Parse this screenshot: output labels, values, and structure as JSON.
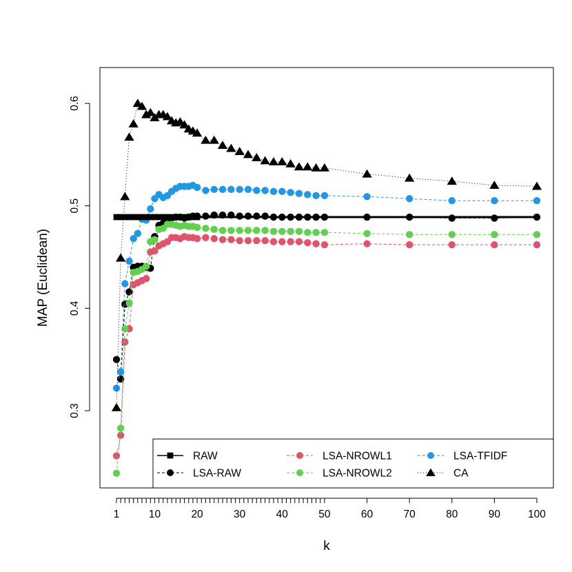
{
  "chart_data": {
    "type": "line",
    "xlabel": "k",
    "ylabel": "MAP (Euclidean)",
    "xlim": [
      1,
      100
    ],
    "ylim": [
      0.24,
      0.62
    ],
    "x_tick_labels": [
      {
        "value": 1,
        "label": "1"
      },
      {
        "value": 10,
        "label": "10"
      },
      {
        "value": 20,
        "label": "20"
      },
      {
        "value": 30,
        "label": "30"
      },
      {
        "value": 40,
        "label": "40"
      },
      {
        "value": 50,
        "label": "50"
      },
      {
        "value": 60,
        "label": "60"
      },
      {
        "value": 70,
        "label": "70"
      },
      {
        "value": 80,
        "label": "80"
      },
      {
        "value": 90,
        "label": "90"
      },
      {
        "value": 100,
        "label": "100"
      }
    ],
    "y_tick_labels": [
      {
        "value": 0.3,
        "label": "0.3"
      },
      {
        "value": 0.4,
        "label": "0.4"
      },
      {
        "value": 0.5,
        "label": "0.5"
      },
      {
        "value": 0.6,
        "label": "0.6"
      }
    ],
    "grid": false,
    "legend_position": "bottom-right",
    "series": [
      {
        "name": "RAW",
        "color": "#000000",
        "line": "solid",
        "marker": "square",
        "x": [
          1,
          100
        ],
        "y": [
          0.489,
          0.489
        ]
      },
      {
        "name": "LSA-RAW",
        "color": "#000000",
        "line": "dashed",
        "marker": "circle",
        "x": [
          1,
          2,
          3,
          4,
          5,
          6,
          7,
          8,
          9,
          10,
          11,
          12,
          13,
          14,
          15,
          16,
          17,
          18,
          19,
          20,
          22,
          24,
          26,
          28,
          30,
          32,
          34,
          36,
          38,
          40,
          42,
          44,
          46,
          48,
          50,
          60,
          70,
          80,
          90,
          100
        ],
        "y": [
          0.35,
          0.331,
          0.404,
          0.416,
          0.44,
          0.441,
          0.441,
          0.44,
          0.439,
          0.47,
          0.481,
          0.483,
          0.487,
          0.488,
          0.489,
          0.489,
          0.488,
          0.489,
          0.49,
          0.49,
          0.49,
          0.491,
          0.491,
          0.491,
          0.49,
          0.49,
          0.49,
          0.49,
          0.489,
          0.489,
          0.489,
          0.489,
          0.489,
          0.489,
          0.489,
          0.489,
          0.489,
          0.488,
          0.488,
          0.489
        ]
      },
      {
        "name": "LSA-NROWL1",
        "color": "#DF536B",
        "line": "dashed",
        "marker": "circle",
        "x": [
          1,
          2,
          3,
          4,
          5,
          6,
          7,
          8,
          9,
          10,
          11,
          12,
          13,
          14,
          15,
          16,
          17,
          18,
          19,
          20,
          22,
          24,
          26,
          28,
          30,
          32,
          34,
          36,
          38,
          40,
          42,
          44,
          46,
          48,
          50,
          60,
          70,
          80,
          90,
          100
        ],
        "y": [
          0.256,
          0.276,
          0.367,
          0.38,
          0.423,
          0.425,
          0.427,
          0.429,
          0.455,
          0.456,
          0.461,
          0.463,
          0.465,
          0.469,
          0.469,
          0.468,
          0.47,
          0.469,
          0.469,
          0.468,
          0.469,
          0.468,
          0.467,
          0.467,
          0.466,
          0.466,
          0.466,
          0.466,
          0.465,
          0.465,
          0.465,
          0.465,
          0.464,
          0.463,
          0.462,
          0.463,
          0.462,
          0.462,
          0.462,
          0.462
        ]
      },
      {
        "name": "LSA-NROWL2",
        "color": "#61D04F",
        "line": "dashed",
        "marker": "circle",
        "x": [
          1,
          2,
          3,
          4,
          5,
          6,
          7,
          8,
          9,
          10,
          11,
          12,
          13,
          14,
          15,
          16,
          17,
          18,
          19,
          20,
          22,
          24,
          26,
          28,
          30,
          32,
          34,
          36,
          38,
          40,
          42,
          44,
          46,
          48,
          50,
          60,
          70,
          80,
          90,
          100
        ],
        "y": [
          0.239,
          0.283,
          0.38,
          0.405,
          0.435,
          0.436,
          0.438,
          0.441,
          0.465,
          0.467,
          0.477,
          0.478,
          0.482,
          0.482,
          0.481,
          0.48,
          0.481,
          0.48,
          0.48,
          0.479,
          0.478,
          0.477,
          0.476,
          0.476,
          0.476,
          0.476,
          0.476,
          0.476,
          0.475,
          0.475,
          0.475,
          0.475,
          0.474,
          0.474,
          0.474,
          0.473,
          0.472,
          0.472,
          0.472,
          0.472
        ]
      },
      {
        "name": "LSA-TFIDF",
        "color": "#2297E6",
        "line": "dashed",
        "marker": "circle",
        "x": [
          1,
          2,
          3,
          4,
          5,
          6,
          7,
          8,
          9,
          10,
          11,
          12,
          13,
          14,
          15,
          16,
          17,
          18,
          19,
          20,
          22,
          24,
          26,
          28,
          30,
          32,
          34,
          36,
          38,
          40,
          42,
          44,
          46,
          48,
          50,
          60,
          70,
          80,
          90,
          100
        ],
        "y": [
          0.322,
          0.338,
          0.424,
          0.446,
          0.468,
          0.473,
          0.487,
          0.486,
          0.497,
          0.507,
          0.511,
          0.508,
          0.51,
          0.514,
          0.517,
          0.519,
          0.519,
          0.519,
          0.52,
          0.518,
          0.515,
          0.516,
          0.516,
          0.516,
          0.516,
          0.516,
          0.515,
          0.515,
          0.514,
          0.514,
          0.513,
          0.512,
          0.511,
          0.51,
          0.51,
          0.509,
          0.507,
          0.505,
          0.505,
          0.505
        ]
      },
      {
        "name": "CA",
        "color": "#000000",
        "line": "dotted",
        "marker": "triangle",
        "x": [
          1,
          2,
          3,
          4,
          5,
          6,
          7,
          8,
          9,
          10,
          11,
          12,
          13,
          14,
          15,
          16,
          17,
          18,
          19,
          20,
          22,
          24,
          26,
          28,
          30,
          32,
          34,
          36,
          38,
          40,
          42,
          44,
          46,
          48,
          50,
          60,
          70,
          80,
          90,
          100
        ],
        "y": [
          0.303,
          0.449,
          0.509,
          0.567,
          0.58,
          0.6,
          0.597,
          0.589,
          0.591,
          0.586,
          0.589,
          0.589,
          0.587,
          0.583,
          0.581,
          0.582,
          0.579,
          0.575,
          0.573,
          0.571,
          0.564,
          0.564,
          0.559,
          0.556,
          0.553,
          0.55,
          0.547,
          0.544,
          0.543,
          0.543,
          0.541,
          0.538,
          0.538,
          0.537,
          0.537,
          0.531,
          0.527,
          0.524,
          0.52,
          0.519
        ]
      }
    ]
  }
}
